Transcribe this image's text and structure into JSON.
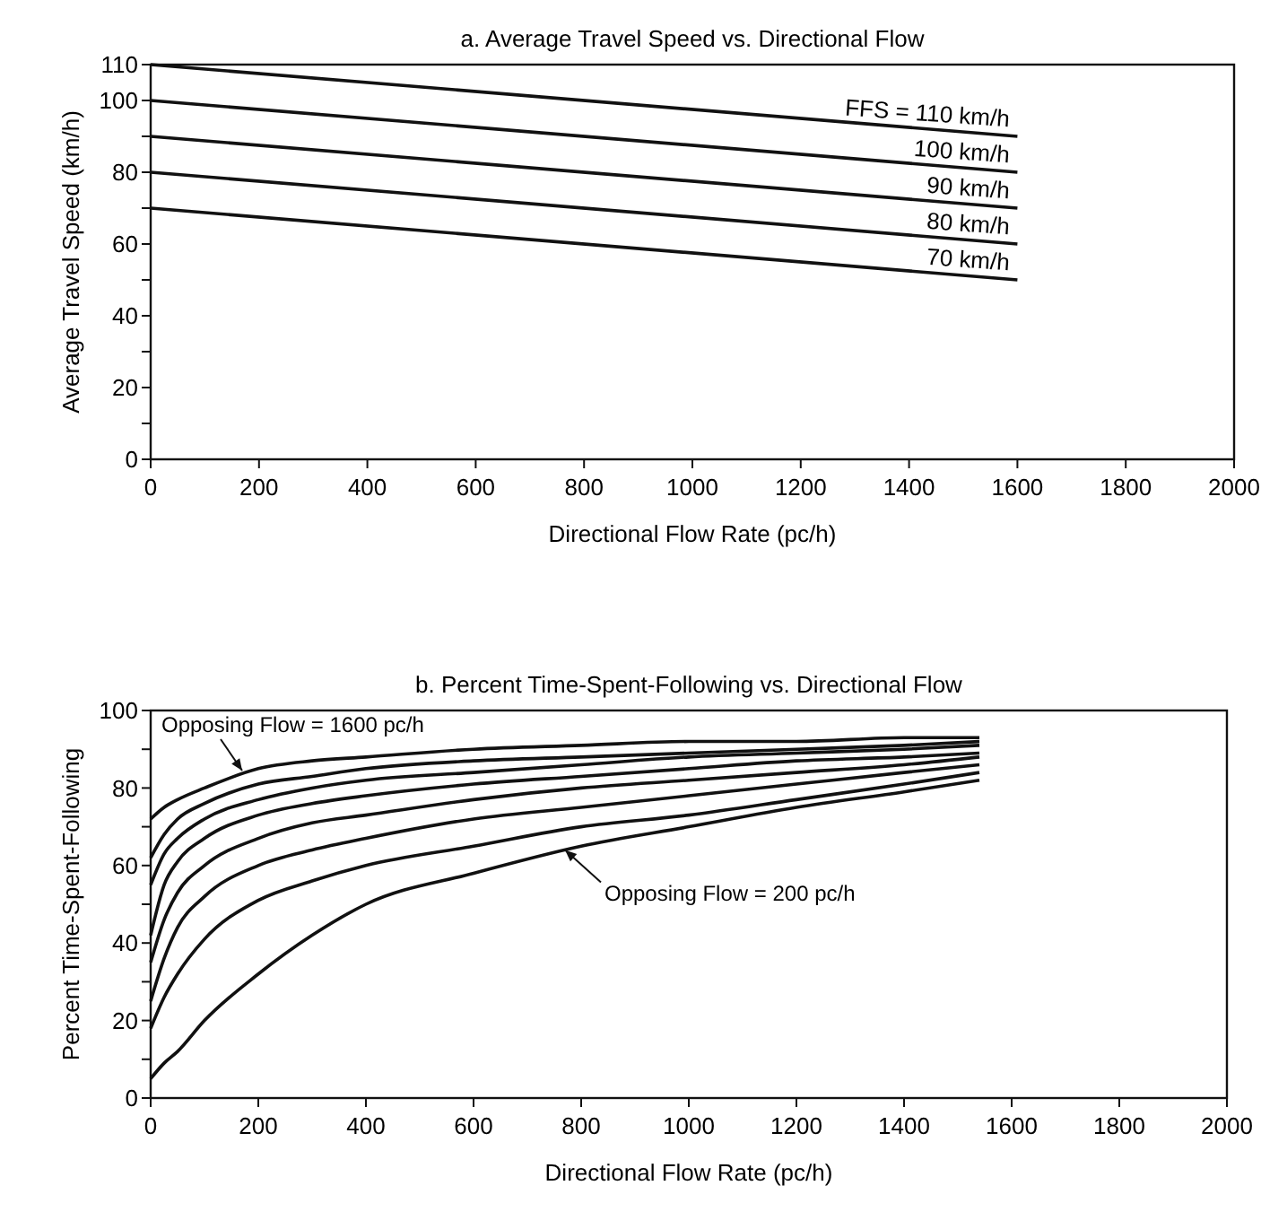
{
  "chart_data": [
    {
      "type": "line",
      "title": "a. Average Travel Speed vs. Directional Flow",
      "xlabel": "Directional Flow Rate (pc/h)",
      "ylabel": "Average Travel Speed (km/h)",
      "x": [
        0,
        1600
      ],
      "series": [
        {
          "name": "FFS = 110 km/h",
          "color": "#111111",
          "values": [
            110,
            90
          ]
        },
        {
          "name": "100 km/h",
          "color": "#111111",
          "values": [
            100,
            80
          ]
        },
        {
          "name": "90 km/h",
          "color": "#111111",
          "values": [
            90,
            70
          ]
        },
        {
          "name": "80 km/h",
          "color": "#111111",
          "values": [
            80,
            60
          ]
        },
        {
          "name": "70 km/h",
          "color": "#111111",
          "values": [
            70,
            50
          ]
        }
      ],
      "xlim": [
        0,
        2000
      ],
      "xticks": [
        0,
        200,
        400,
        600,
        800,
        1000,
        1200,
        1400,
        1600,
        1800,
        2000
      ],
      "ylim": [
        0,
        110
      ],
      "yticks": [
        0,
        {
          "value": 10,
          "label": null
        },
        20,
        {
          "value": 30,
          "label": null
        },
        40,
        {
          "value": 50,
          "label": null
        },
        60,
        {
          "value": 70,
          "label": null
        },
        80,
        {
          "value": 90,
          "label": null
        },
        100,
        110
      ],
      "grid": false,
      "marker": "none",
      "line_style": "solid"
    },
    {
      "type": "line",
      "title": "b. Percent Time-Spent-Following vs. Directional Flow",
      "xlabel": "Directional Flow Rate (pc/h)",
      "ylabel": "Percent Time-Spent-Following",
      "x": [
        0,
        25,
        50,
        100,
        200,
        300,
        400,
        600,
        800,
        1000,
        1200,
        1400,
        1540
      ],
      "series": [
        {
          "color": "#111111",
          "values": [
            5,
            9,
            12,
            20,
            32,
            42,
            50,
            58,
            65,
            70,
            75,
            79,
            82
          ]
        },
        {
          "color": "#111111",
          "values": [
            18,
            26,
            32,
            41,
            51,
            56,
            60,
            65,
            70,
            73,
            77,
            81,
            84
          ]
        },
        {
          "color": "#111111",
          "values": [
            25,
            36,
            44,
            52,
            60,
            64,
            67,
            72,
            75,
            78,
            81,
            84,
            86
          ]
        },
        {
          "color": "#111111",
          "values": [
            35,
            46,
            53,
            60,
            67,
            71,
            73,
            77,
            80,
            82,
            84,
            86,
            88
          ]
        },
        {
          "color": "#111111",
          "values": [
            42,
            55,
            61,
            67,
            73,
            76,
            78,
            81,
            83,
            85,
            87,
            88,
            89
          ]
        },
        {
          "color": "#111111",
          "values": [
            55,
            63,
            67,
            72,
            77,
            80,
            82,
            84,
            86,
            88,
            89,
            90,
            91
          ]
        },
        {
          "color": "#111111",
          "values": [
            62,
            68,
            72,
            76,
            81,
            83,
            85,
            87,
            88,
            89,
            90,
            91,
            92
          ]
        },
        {
          "color": "#111111",
          "values": [
            72,
            75,
            77,
            80,
            85,
            87,
            88,
            90,
            91,
            92,
            92,
            93,
            93
          ]
        }
      ],
      "annotations": [
        {
          "text": "Opposing Flow = 1600 pc/h",
          "x": 170,
          "y": 84.5
        },
        {
          "text": "Opposing Flow = 200 pc/h",
          "x": 770,
          "y": 64
        }
      ],
      "xlim": [
        0,
        2000
      ],
      "xticks": [
        0,
        200,
        400,
        600,
        800,
        1000,
        1200,
        1400,
        1600,
        1800,
        2000
      ],
      "ylim": [
        0,
        100
      ],
      "yticks": [
        0,
        {
          "value": 10,
          "label": null
        },
        20,
        {
          "value": 30,
          "label": null
        },
        40,
        {
          "value": 50,
          "label": null
        },
        60,
        {
          "value": 70,
          "label": null
        },
        80,
        {
          "value": 90,
          "label": null
        },
        100
      ],
      "grid": false,
      "marker": "none",
      "line_style": "solid"
    }
  ]
}
